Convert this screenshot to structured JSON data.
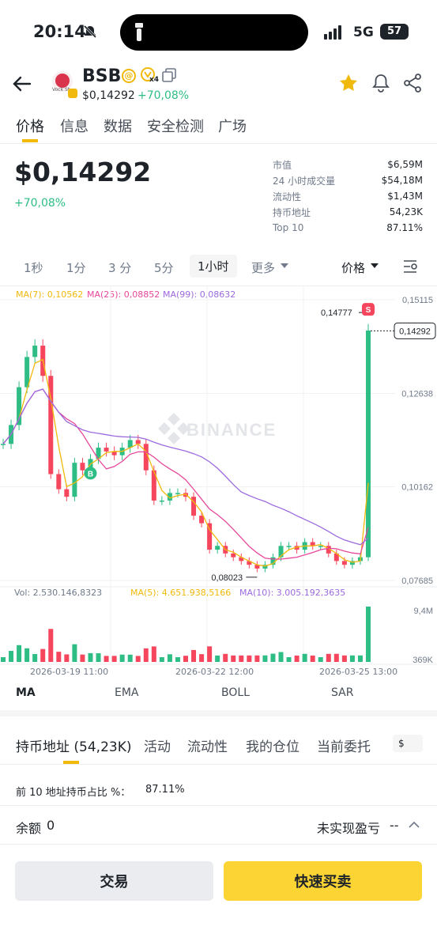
{
  "status_bar": {
    "time": "20:14",
    "network": "5G",
    "battery": "57"
  },
  "header": {
    "symbol": "BSB",
    "price": "$0,14292",
    "change": "+70,08%",
    "logo_text": "Vock St",
    "badge_x": "x4"
  },
  "tabs": [
    "价格",
    "信息",
    "数据",
    "安全检测",
    "广场"
  ],
  "price_block": {
    "price": "$0,14292",
    "change": "+70,08%"
  },
  "stats": [
    {
      "label": "市值",
      "value": "$6,59M"
    },
    {
      "label": "24 小时成交量",
      "value": "$54,18M"
    },
    {
      "label": "流动性",
      "value": "$1,43M"
    },
    {
      "label": "持币地址",
      "value": "54,23K"
    },
    {
      "label": "Top 10",
      "value": "87.11%"
    }
  ],
  "timeframes": [
    "1秒",
    "1分",
    "3 分",
    "5分",
    "1小时",
    "更多"
  ],
  "price_toggle": "价格",
  "ma_legend": [
    {
      "label": "MA(7): 0,10562",
      "color": "#f0b90b"
    },
    {
      "label": "MA(25): 0,08852",
      "color": "#e6479b"
    },
    {
      "label": "MA(99): 0,08632",
      "color": "#9c6ade"
    }
  ],
  "chart_data": {
    "type": "candlestick",
    "y_ticks": [
      "0,15115",
      "0,12638",
      "0,10162",
      "0,07685"
    ],
    "high_label": "0,14777",
    "low_label": "0,08023",
    "current_label": "0,14292",
    "watermark": "BINANCE",
    "buy_marker": "B",
    "sell_marker": "S",
    "x_labels": [
      "2026-03-19 11:00",
      "2026-03-22 12:00",
      "2026-03-25 13:00"
    ],
    "volume_legend": [
      {
        "label": "Vol: 2.530.146,8323",
        "color": "#707a8a"
      },
      {
        "label": "MA(5): 4.651.938,5166",
        "color": "#f0b90b"
      },
      {
        "label": "MA(10): 3.005.192,3635",
        "color": "#9c6ade"
      }
    ],
    "volume_ticks": [
      "9,4M",
      "369K"
    ],
    "closes": [
      0.113,
      0.118,
      0.128,
      0.136,
      0.139,
      0.131,
      0.105,
      0.101,
      0.099,
      0.108,
      0.106,
      0.109,
      0.112,
      0.111,
      0.11,
      0.112,
      0.114,
      0.113,
      0.106,
      0.098,
      0.098,
      0.1,
      0.1,
      0.099,
      0.094,
      0.092,
      0.085,
      0.086,
      0.084,
      0.083,
      0.082,
      0.081,
      0.08,
      0.081,
      0.083,
      0.086,
      0.086,
      0.085,
      0.087,
      0.086,
      0.086,
      0.084,
      0.082,
      0.081,
      0.082,
      0.083,
      0.143
    ]
  },
  "indicator_tabs": [
    "MA",
    "EMA",
    "BOLL",
    "SAR"
  ],
  "bottom_tabs": [
    "持币地址 (54,23K)",
    "活动",
    "流动性",
    "我的仓位",
    "当前委托"
  ],
  "currency_chip": "$",
  "holdings": {
    "top10_label": "前 10 地址持币占比 %：",
    "top10_value": "87.11%"
  },
  "balance": {
    "label": "余额",
    "value": "0",
    "pnl_label": "未实现盈亏",
    "pnl_value": "--"
  },
  "buttons": {
    "trade": "交易",
    "quick": "快速买卖"
  }
}
